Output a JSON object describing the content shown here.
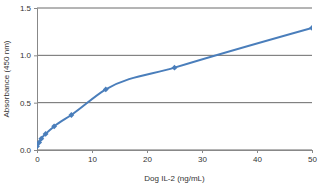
{
  "chart_data": {
    "type": "line",
    "x_label": "Dog IL-2 (ng/mL)",
    "y_label": "Absorbance (450 nm)",
    "x": [
      0,
      0.39,
      0.78,
      1.56,
      3.125,
      6.25,
      12.5,
      25,
      50
    ],
    "values": [
      0.04,
      0.08,
      0.12,
      0.17,
      0.25,
      0.37,
      0.64,
      0.87,
      1.29
    ],
    "color": "#4a7ebb",
    "marker": "diamond",
    "line_style": "solid",
    "xlim": [
      0,
      50
    ],
    "xticks": [
      0,
      10,
      20,
      30,
      40,
      50
    ],
    "ylim": [
      0,
      1.5
    ],
    "yticks": [
      {
        "value": 0,
        "label": "0.0"
      },
      {
        "value": 0.5,
        "label": "0.5"
      },
      {
        "value": 1,
        "label": "1.0"
      },
      {
        "value": 1.5,
        "label": "1.5"
      }
    ],
    "grid": true
  }
}
